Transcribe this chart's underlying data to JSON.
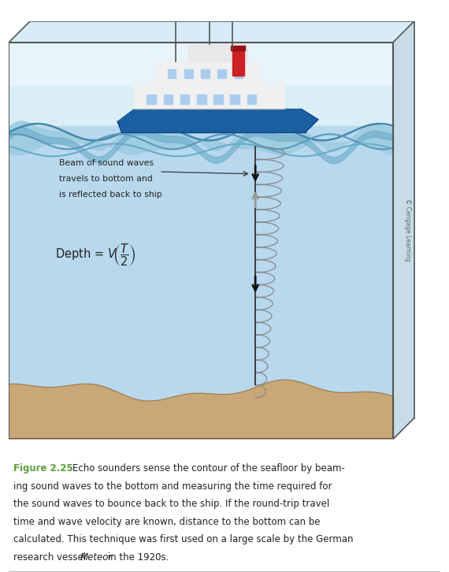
{
  "fig_width": 5.7,
  "fig_height": 7.26,
  "dpi": 100,
  "bg_color": "#ffffff",
  "sky_top_color": "#daeef8",
  "sky_bot_color": "#c0e0f4",
  "water_color": "#b8d8ee",
  "water_deep_color": "#a8ccde",
  "seafloor_color": "#c8a878",
  "seafloor_edge_color": "#b89060",
  "box_line_color": "#555555",
  "wave_surface_color": "#7ab8d8",
  "wave_fill_color": "#5090b8",
  "coil_color": "#888888",
  "axis_color": "#333333",
  "arrow_down_color": "#111111",
  "arrow_up_color": "#999999",
  "ship_hull_color": "#1a5fa0",
  "ship_white": "#f0f0f0",
  "ship_red": "#cc2222",
  "ship_gray": "#aaaaaa",
  "copyright_color": "#666666",
  "figure_label_color": "#5a9e3a",
  "text_color": "#222222",
  "figure_label": "Figure 2.25",
  "annotation_line1": "Beam of sound waves",
  "annotation_line2": "travels to bottom and",
  "annotation_line3": "is reflected back to ship",
  "copyright_text": "© Cengage Learning"
}
